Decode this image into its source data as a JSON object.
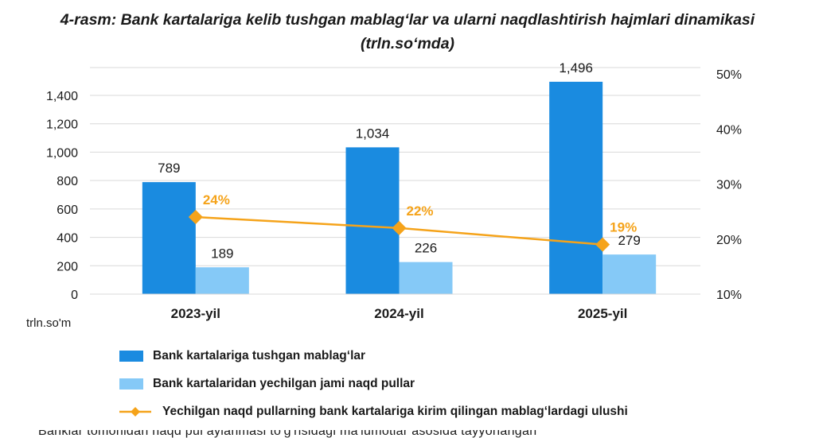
{
  "title_line1": "4-rasm: Bank kartalariga kelib tushgan mablag‘lar va ularni naqdlashtirish hajmlari dinamikasi",
  "title_line2": "(trln.so‘mda)",
  "unit_label": "trln.so'm",
  "bottom_text": "Banklar tomonidan naqd pul aylanmasi to'g'risidagi ma'lumotlar asosida tayyorlangan",
  "chart_data": {
    "type": "bar",
    "categories": [
      "2023-yil",
      "2024-yil",
      "2025-yil"
    ],
    "series": [
      {
        "name": "Bank kartalariga tushgan mablag‘lar",
        "type": "bar",
        "axis": "left",
        "color": "#1a8be0",
        "values": [
          789,
          1034,
          1496
        ],
        "labels": [
          "789",
          "1,034",
          "1,496"
        ]
      },
      {
        "name": "Bank kartalaridan yechilgan jami naqd pullar",
        "type": "bar",
        "axis": "left",
        "color": "#85c9f7",
        "values": [
          189,
          226,
          279
        ],
        "labels": [
          "189",
          "226",
          "279"
        ]
      },
      {
        "name": "Yechilgan naqd pullarning bank kartalariga kirim qilingan mablag‘lardagi ulushi",
        "type": "line",
        "axis": "right",
        "color": "#f5a31a",
        "values": [
          24,
          22,
          19
        ],
        "labels": [
          "24%",
          "22%",
          "19%"
        ]
      }
    ],
    "y_left": {
      "min": 0,
      "max": 1400,
      "ticks": [
        0,
        200,
        400,
        600,
        800,
        1000,
        1200,
        1400
      ],
      "tick_labels": [
        "0",
        "200",
        "400",
        "600",
        "800",
        "1,000",
        "1,200",
        "1,400"
      ]
    },
    "y_right": {
      "min": 10,
      "max": 50,
      "ticks": [
        10,
        20,
        30,
        40,
        50
      ],
      "tick_labels": [
        "10%",
        "20%",
        "30%",
        "40%",
        "50%"
      ]
    },
    "grid": true,
    "legend_position": "bottom"
  }
}
